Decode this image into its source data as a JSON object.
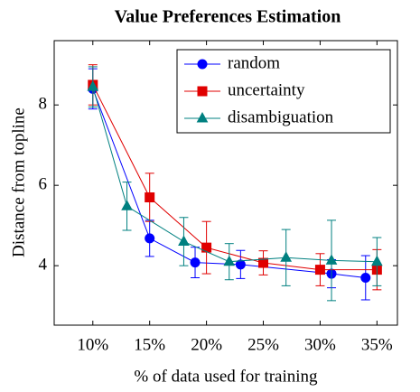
{
  "chart_data": {
    "type": "line",
    "title": "Value Preferences Estimation",
    "xlabel": "% of data used for training",
    "ylabel": "Distance from topline",
    "xlim": [
      6.6,
      36.8
    ],
    "ylim": [
      2.52,
      9.6
    ],
    "xticks": [
      {
        "value": 10,
        "label": "10%"
      },
      {
        "value": 15,
        "label": "15%"
      },
      {
        "value": 20,
        "label": "20%"
      },
      {
        "value": 25,
        "label": "25%"
      },
      {
        "value": 30,
        "label": "30%"
      },
      {
        "value": 35,
        "label": "35%"
      }
    ],
    "yticks": [
      4,
      6,
      8
    ],
    "legend": "upper right",
    "series": [
      {
        "name": "random",
        "color": "#0000ff",
        "marker": "circle",
        "x": [
          10,
          15,
          19,
          23,
          31,
          34
        ],
        "values": [
          8.4,
          4.68,
          4.08,
          4.03,
          3.8,
          3.7
        ],
        "errors": [
          0.5,
          0.45,
          0.38,
          0.35,
          0.35,
          0.55
        ]
      },
      {
        "name": "uncertainty",
        "color": "#e00000",
        "marker": "square",
        "x": [
          10,
          15,
          20,
          25,
          30,
          35
        ],
        "values": [
          8.5,
          5.7,
          4.45,
          4.07,
          3.9,
          3.9
        ],
        "errors": [
          0.5,
          0.6,
          0.65,
          0.3,
          0.4,
          0.5
        ]
      },
      {
        "name": "disambiguation",
        "color": "#008080",
        "marker": "triangle",
        "x": [
          10,
          13,
          18,
          22,
          27,
          31,
          35
        ],
        "values": [
          8.45,
          5.48,
          4.6,
          4.1,
          4.2,
          4.13,
          4.1
        ],
        "errors": [
          0.5,
          0.6,
          0.6,
          0.45,
          0.7,
          1.0,
          0.6
        ]
      }
    ]
  }
}
